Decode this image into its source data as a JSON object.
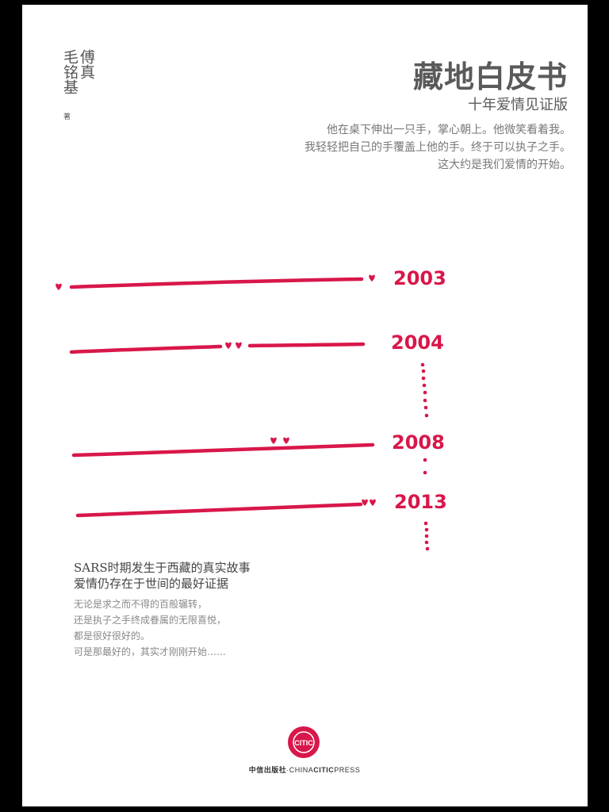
{
  "authors": {
    "column_right": "傅真",
    "column_left": "毛铭基",
    "role": "著"
  },
  "title": "藏地白皮书",
  "subtitle": "十年爱情见证版",
  "blurb": [
    "他在桌下伸出一只手，掌心朝上。他微笑看着我。",
    "我轻轻把自己的手覆盖上他的手。终于可以执子之手。",
    "这大约是我们爱情的开始。"
  ],
  "timeline": {
    "years": [
      "2003",
      "2004",
      "2008",
      "2013"
    ],
    "accent_color": "#d8174a"
  },
  "tagline": [
    "SARS时期发生于西藏的真实故事",
    "爱情仍存在于世间的最好证据"
  ],
  "story": [
    "无论是求之而不得的百般辗转，",
    "还是执子之手终成眷属的无限喜悦，",
    "都是很好很好的。",
    "可是那最好的，其实才刚刚开始……"
  ],
  "publisher": {
    "cn_name": "中信出版社",
    "separator": "·",
    "en_prefix": "CHINA",
    "en_bold": "CITIC",
    "en_suffix": "PRESS"
  },
  "logo_text": "CITIC"
}
